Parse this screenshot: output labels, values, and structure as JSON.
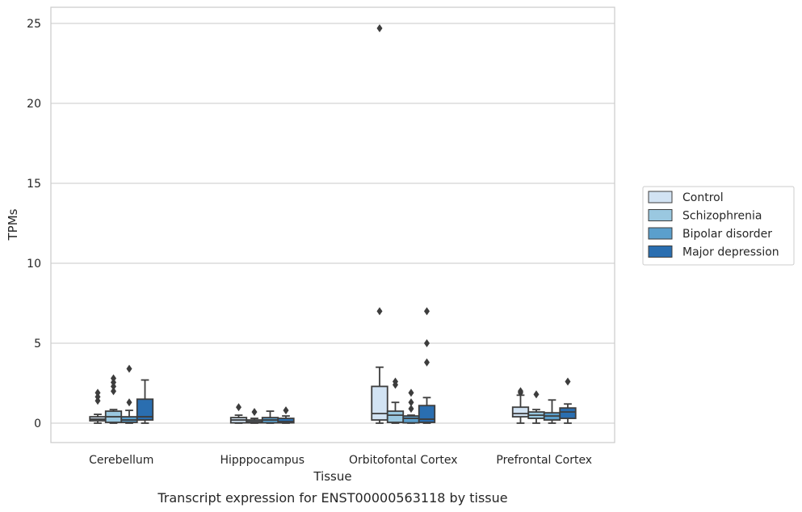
{
  "chart_data": {
    "type": "box",
    "title": "Transcript expression for ENST00000563118 by tissue",
    "xlabel": "Tissue",
    "ylabel": "TPMs",
    "ylim": [
      -1.2,
      26
    ],
    "yticks": [
      0,
      5,
      10,
      15,
      20,
      25
    ],
    "categories": [
      "Cerebellum",
      "Hipppocampus",
      "Orbitofontal Cortex",
      "Prefrontal Cortex"
    ],
    "grid": "horizontal",
    "legend_placement": "center-right",
    "series": [
      {
        "name": "Control",
        "color": "#d2e3f3",
        "boxes": [
          {
            "whislo": 0.0,
            "q1": 0.15,
            "med": 0.25,
            "q3": 0.4,
            "whishi": 0.55,
            "fliers": [
              1.4,
              1.65,
              1.9
            ]
          },
          {
            "whislo": 0.0,
            "q1": 0.02,
            "med": 0.2,
            "q3": 0.35,
            "whishi": 0.5,
            "fliers": [
              1.0
            ]
          },
          {
            "whislo": 0.0,
            "q1": 0.2,
            "med": 0.6,
            "q3": 2.3,
            "whishi": 3.5,
            "fliers": [
              7.0,
              24.7
            ]
          },
          {
            "whislo": 0.0,
            "q1": 0.4,
            "med": 0.6,
            "q3": 1.0,
            "whishi": 1.75,
            "fliers": [
              1.9,
              2.0
            ]
          }
        ]
      },
      {
        "name": "Schizophrenia",
        "color": "#9ac8e0",
        "boxes": [
          {
            "whislo": 0.0,
            "q1": 0.05,
            "med": 0.4,
            "q3": 0.75,
            "whishi": 0.85,
            "fliers": [
              2.0,
              2.3,
              2.55,
              2.8
            ]
          },
          {
            "whislo": 0.0,
            "q1": 0.02,
            "med": 0.1,
            "q3": 0.2,
            "whishi": 0.3,
            "fliers": [
              0.7
            ]
          },
          {
            "whislo": 0.0,
            "q1": 0.05,
            "med": 0.5,
            "q3": 0.75,
            "whishi": 1.3,
            "fliers": [
              2.4,
              2.6
            ]
          },
          {
            "whislo": 0.0,
            "q1": 0.3,
            "med": 0.5,
            "q3": 0.7,
            "whishi": 0.85,
            "fliers": [
              1.8
            ]
          }
        ]
      },
      {
        "name": "Bipolar disorder",
        "color": "#5b9fcc",
        "boxes": [
          {
            "whislo": 0.0,
            "q1": 0.05,
            "med": 0.2,
            "q3": 0.4,
            "whishi": 0.8,
            "fliers": [
              1.3,
              3.4
            ]
          },
          {
            "whislo": 0.0,
            "q1": 0.02,
            "med": 0.2,
            "q3": 0.35,
            "whishi": 0.75,
            "fliers": []
          },
          {
            "whislo": 0.0,
            "q1": 0.02,
            "med": 0.3,
            "q3": 0.45,
            "whishi": 0.5,
            "fliers": [
              0.9,
              1.3,
              1.9
            ]
          },
          {
            "whislo": 0.0,
            "q1": 0.2,
            "med": 0.45,
            "q3": 0.65,
            "whishi": 1.45,
            "fliers": []
          }
        ]
      },
      {
        "name": "Major depression",
        "color": "#2a6eb0",
        "boxes": [
          {
            "whislo": 0.0,
            "q1": 0.2,
            "med": 0.4,
            "q3": 1.5,
            "whishi": 2.7,
            "fliers": []
          },
          {
            "whislo": 0.0,
            "q1": 0.02,
            "med": 0.1,
            "q3": 0.3,
            "whishi": 0.45,
            "fliers": [
              0.8
            ]
          },
          {
            "whislo": 0.0,
            "q1": 0.05,
            "med": 0.25,
            "q3": 1.1,
            "whishi": 1.6,
            "fliers": [
              3.8,
              5.0,
              7.0
            ]
          },
          {
            "whislo": 0.0,
            "q1": 0.3,
            "med": 0.7,
            "q3": 0.95,
            "whishi": 1.2,
            "fliers": [
              2.6
            ]
          }
        ]
      }
    ]
  }
}
